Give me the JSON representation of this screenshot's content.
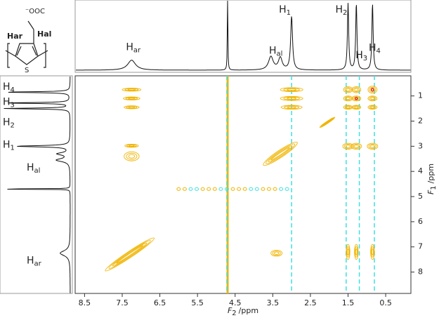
{
  "chart_data": {
    "type": "nmr2d",
    "structure": {
      "carboxylate": "⁻OOC",
      "h_ar": "Har",
      "h_al": "Hal",
      "sulfur": "S"
    },
    "x_label": {
      "main": "F",
      "sub": "2",
      "unit": "/ppm"
    },
    "y_label": {
      "main": "F",
      "sub": "1",
      "unit": "/ppm"
    },
    "xlim": [
      8.75,
      -0.17
    ],
    "ylim": [
      0.2,
      8.85
    ],
    "xticks": [
      8.5,
      7.5,
      6.5,
      5.5,
      4.5,
      3.5,
      2.5,
      1.5,
      0.5
    ],
    "yticks": [
      1,
      2,
      3,
      4,
      5,
      6,
      7,
      8
    ],
    "top_labels": [
      {
        "h": "H",
        "sub": "ar",
        "ppm": 7.25
      },
      {
        "h": "H",
        "sub": "al",
        "ppm": 3.45
      },
      {
        "h": "H",
        "sub": "1",
        "ppm": 3.0
      },
      {
        "h": "H",
        "sub": "2",
        "ppm": 1.5
      },
      {
        "h": "H",
        "sub": "3",
        "ppm": 1.15
      },
      {
        "h": "H",
        "sub": "4",
        "ppm": 0.8
      }
    ],
    "side_labels": [
      {
        "h": "H",
        "sub": "4",
        "ppm": 0.65
      },
      {
        "h": "H",
        "sub": "3",
        "ppm": 1.25
      },
      {
        "h": "H",
        "sub": "2",
        "ppm": 2.05
      },
      {
        "h": "H",
        "sub": "1",
        "ppm": 2.95
      },
      {
        "h": "H",
        "sub": "al",
        "ppm": 3.85
      },
      {
        "h": "H",
        "sub": "ar",
        "ppm": 7.55
      }
    ],
    "spectrum_peaks": [
      {
        "ppm": 7.25,
        "height": 0.15,
        "width": 0.25
      },
      {
        "ppm": 4.7,
        "height": 2.0,
        "width": 0.012
      },
      {
        "ppm": 3.55,
        "height": 0.2,
        "width": 0.15
      },
      {
        "ppm": 3.3,
        "height": 0.18,
        "width": 0.12
      },
      {
        "ppm": 3.0,
        "height": 0.8,
        "width": 0.06
      },
      {
        "ppm": 1.5,
        "height": 1.0,
        "width": 0.04
      },
      {
        "ppm": 1.28,
        "height": 1.0,
        "width": 0.04
      },
      {
        "ppm": 0.85,
        "height": 1.0,
        "width": 0.04
      }
    ],
    "positive_color": "#f0b400",
    "negative_color": "#40e0e0",
    "core_color": "#e03020",
    "cross_peaks": [
      {
        "f2": 7.25,
        "f1": 0.75,
        "w": 0.25,
        "h": 0.06
      },
      {
        "f2": 7.25,
        "f1": 1.1,
        "w": 0.22,
        "h": 0.06
      },
      {
        "f2": 7.25,
        "f1": 1.45,
        "w": 0.2,
        "h": 0.06
      },
      {
        "f2": 7.25,
        "f1": 2.98,
        "w": 0.18,
        "h": 0.06
      },
      {
        "f2": 7.25,
        "f1": 3.4,
        "w": 0.2,
        "h": 0.18
      },
      {
        "f2": 3.0,
        "f1": 0.75,
        "w": 0.3,
        "h": 0.08
      },
      {
        "f2": 3.0,
        "f1": 1.1,
        "w": 0.3,
        "h": 0.08
      },
      {
        "f2": 3.0,
        "f1": 1.45,
        "w": 0.28,
        "h": 0.08
      },
      {
        "f2": 3.4,
        "f1": 7.25,
        "w": 0.15,
        "h": 0.12
      },
      {
        "f2": 1.5,
        "f1": 0.75,
        "w": 0.12,
        "h": 0.12
      },
      {
        "f2": 1.28,
        "f1": 0.75,
        "w": 0.12,
        "h": 0.12
      },
      {
        "f2": 0.85,
        "f1": 0.75,
        "w": 0.12,
        "h": 0.14,
        "core": true
      },
      {
        "f2": 1.5,
        "f1": 1.1,
        "w": 0.12,
        "h": 0.1
      },
      {
        "f2": 1.28,
        "f1": 1.1,
        "w": 0.12,
        "h": 0.1,
        "core": true
      },
      {
        "f2": 0.85,
        "f1": 1.1,
        "w": 0.12,
        "h": 0.1
      },
      {
        "f2": 1.5,
        "f1": 1.45,
        "w": 0.12,
        "h": 0.08
      },
      {
        "f2": 1.28,
        "f1": 1.45,
        "w": 0.12,
        "h": 0.08
      },
      {
        "f2": 0.85,
        "f1": 1.45,
        "w": 0.12,
        "h": 0.08
      },
      {
        "f2": 1.5,
        "f1": 3.0,
        "w": 0.14,
        "h": 0.12
      },
      {
        "f2": 1.28,
        "f1": 3.0,
        "w": 0.14,
        "h": 0.12
      },
      {
        "f2": 0.85,
        "f1": 3.0,
        "w": 0.14,
        "h": 0.12
      },
      {
        "f2": 1.5,
        "f1": 7.2,
        "w": 0.05,
        "h": 0.3
      },
      {
        "f2": 1.28,
        "f1": 7.2,
        "w": 0.05,
        "h": 0.3
      },
      {
        "f2": 0.85,
        "f1": 7.2,
        "w": 0.05,
        "h": 0.3
      }
    ],
    "diagonal_peaks": [
      {
        "from": 7.95,
        "to": 6.65,
        "thick": 0.12
      },
      {
        "from": 3.75,
        "to": 2.85,
        "thick": 0.14
      },
      {
        "from": 2.25,
        "to": 1.85,
        "thick": 0.04
      }
    ],
    "streaks": [
      {
        "f2": 4.7,
        "sign": 1
      },
      {
        "f2": 4.72,
        "sign": -1
      },
      {
        "f2": 3.0,
        "sign": -1
      },
      {
        "f2": 1.55,
        "sign": -1
      },
      {
        "f2": 1.2,
        "sign": -1
      },
      {
        "f2": 0.8,
        "sign": -1
      }
    ],
    "row_streak": {
      "f1": 4.7,
      "from": 6.0,
      "to": 3.1
    }
  }
}
